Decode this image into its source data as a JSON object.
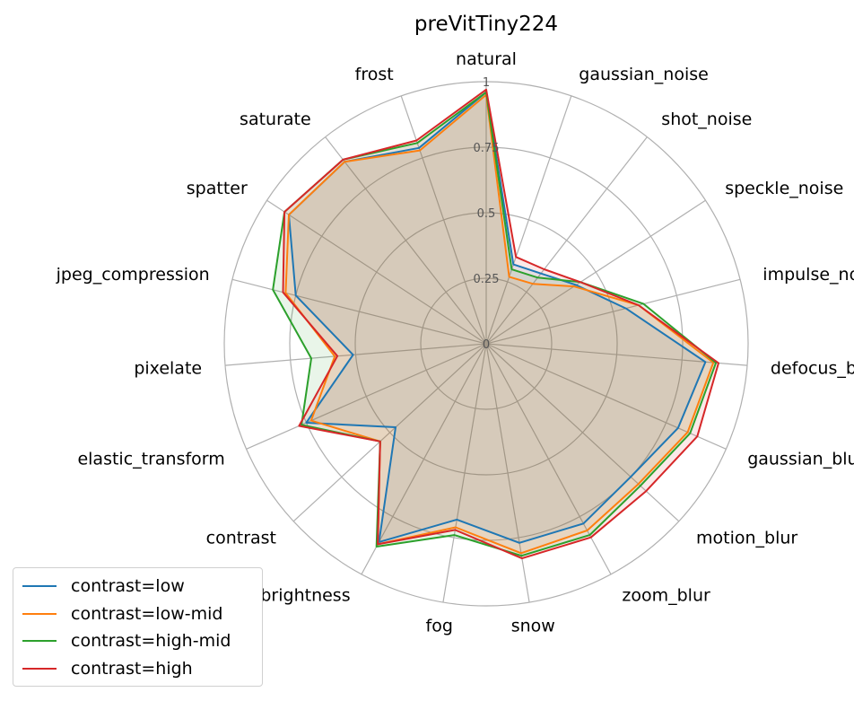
{
  "chart_data": {
    "type": "radar",
    "title": "preVitTiny224",
    "categories": [
      "natural",
      "gaussian_noise",
      "shot_noise",
      "speckle_noise",
      "impulse_noise",
      "defocus_blur",
      "gaussian_blur",
      "motion_blur",
      "zoom_blur",
      "snow",
      "fog",
      "brightness",
      "contrast",
      "elastic_transform",
      "pixelate",
      "jpeg_compression",
      "spatter",
      "saturate",
      "frost"
    ],
    "radial_ticks": [
      0,
      0.25,
      0.5,
      0.75,
      1
    ],
    "radial_tick_labels": [
      "0",
      "0.25",
      "0.5",
      "0.75",
      "1"
    ],
    "rlim": [
      0,
      1
    ],
    "grid": true,
    "legend_position": "lower-left",
    "series": [
      {
        "name": "contrast=low",
        "color": "#1f77b4",
        "values": [
          0.96,
          0.32,
          0.34,
          0.41,
          0.55,
          0.84,
          0.8,
          0.75,
          0.78,
          0.77,
          0.68,
          0.86,
          0.47,
          0.75,
          0.51,
          0.75,
          0.9,
          0.88,
          0.79
        ]
      },
      {
        "name": "contrast=low-mid",
        "color": "#ff7f0e",
        "values": [
          0.95,
          0.27,
          0.29,
          0.4,
          0.6,
          0.87,
          0.84,
          0.79,
          0.81,
          0.81,
          0.71,
          0.87,
          0.55,
          0.73,
          0.58,
          0.79,
          0.9,
          0.88,
          0.78
        ]
      },
      {
        "name": "contrast=high-mid",
        "color": "#2ca02c",
        "values": [
          0.96,
          0.3,
          0.32,
          0.43,
          0.62,
          0.88,
          0.85,
          0.8,
          0.83,
          0.82,
          0.74,
          0.88,
          0.55,
          0.77,
          0.67,
          0.84,
          0.92,
          0.89,
          0.81
        ]
      },
      {
        "name": "contrast=high",
        "color": "#d62728",
        "values": [
          0.97,
          0.35,
          0.36,
          0.43,
          0.6,
          0.89,
          0.88,
          0.83,
          0.84,
          0.83,
          0.72,
          0.87,
          0.55,
          0.78,
          0.57,
          0.8,
          0.92,
          0.89,
          0.82
        ]
      }
    ]
  }
}
